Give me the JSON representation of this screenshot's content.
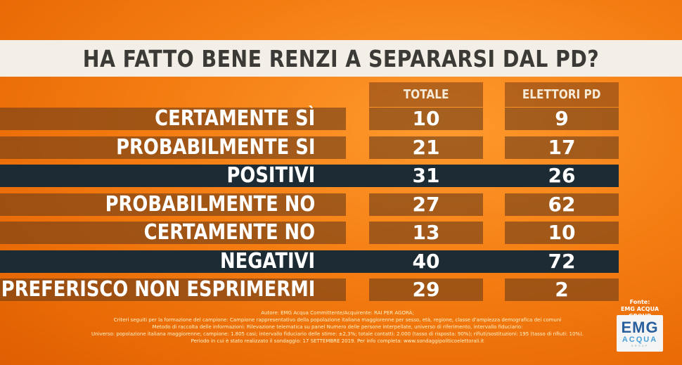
{
  "title": "HA FATTO BENE RENZI A SEPARARSI DAL PD?",
  "colors": {
    "background": "#f47d12",
    "title_band": "#f3efe6",
    "row_normal": "#6e3e18",
    "row_strong": "#1d2b35",
    "text": "#ffffff"
  },
  "chart_data": {
    "type": "table",
    "columns": [
      "TOTALE",
      "ELETTORI PD"
    ],
    "rows": [
      {
        "label": "CERTAMENTE SÌ",
        "values": [
          10,
          9
        ],
        "style": "normal"
      },
      {
        "label": "PROBABILMENTE SI",
        "values": [
          21,
          17
        ],
        "style": "normal"
      },
      {
        "label": "POSITIVI",
        "values": [
          31,
          26
        ],
        "style": "strong"
      },
      {
        "label": "PROBABILMENTE NO",
        "values": [
          27,
          62
        ],
        "style": "normal"
      },
      {
        "label": "CERTAMENTE NO",
        "values": [
          13,
          10
        ],
        "style": "normal"
      },
      {
        "label": "NEGATIVI",
        "values": [
          40,
          72
        ],
        "style": "strong"
      },
      {
        "label": "PREFERISCO NON ESPRIMERMI",
        "values": [
          29,
          2
        ],
        "style": "normal"
      }
    ]
  },
  "footer": {
    "lines": [
      "Autore: EMG Acqua Committente/Acquirente: RAI PER AGORÀ;",
      "Criteri seguiti per la formazione del campione: Campione rappresentativo della popolazione italiana maggiorenne per sesso, età, regione, classe d'ampiezza demografica dei comuni",
      "Metodo di raccolta delle informazioni: Rilevazione telematica su panel Numero delle persone interpellate, universo di riferimento, intervallo fiduciario:",
      "Universo: popolazione italiana maggiorenne; campione: 1.805 casi; intervallo fiduciario delle stime: ±2,3%; totale contatti: 2.000 (tasso di risposta: 90%); rifiuti/sostituzioni: 195 (tasso di rifiuti: 10%).",
      "Periodo in cui è stato realizzato il sondaggio: 17 SETTEMBRE 2019. Per info completa: www.sondaggipoliticoelettorali.it"
    ],
    "source_label": "Fonte:",
    "source_name": "EMG ACQUA GROUP",
    "logo_main": "EMG",
    "logo_sub": "ACQUA",
    "logo_small": "GROUP"
  }
}
